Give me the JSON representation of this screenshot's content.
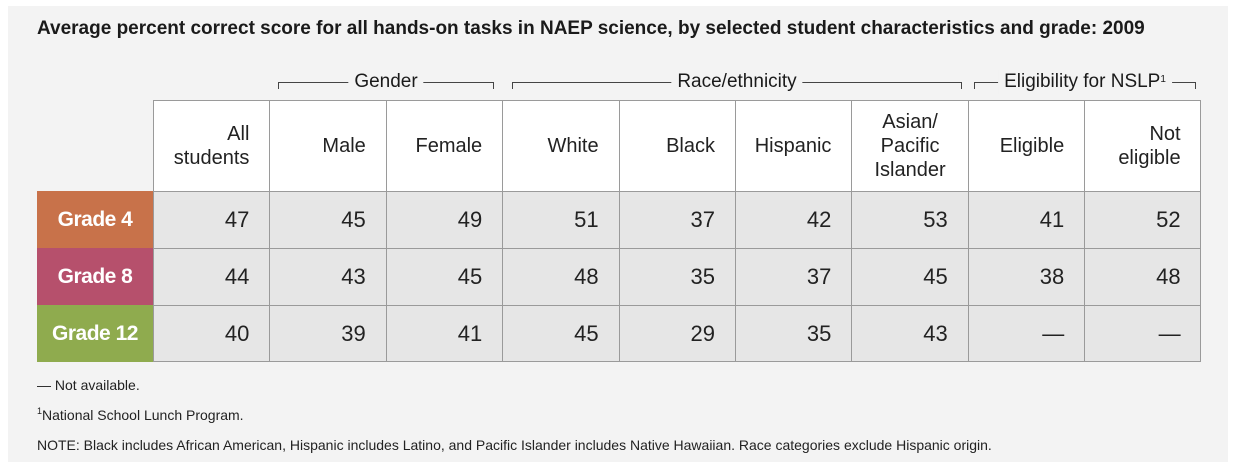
{
  "chart_data": {
    "type": "table",
    "title": "Average percent correct score for all hands-on tasks in NAEP science, by selected student characteristics and grade: 2009",
    "groups": [
      {
        "label": "Gender",
        "sup": ""
      },
      {
        "label": "Race/ethnicity",
        "sup": ""
      },
      {
        "label": "Eligibility for NSLP",
        "sup": "1"
      }
    ],
    "columns": [
      "All\nstudents",
      "Male",
      "Female",
      "White",
      "Black",
      "Hispanic",
      "Asian/\nPacific\nIslander",
      "Eligible",
      "Not\neligible"
    ],
    "rows": [
      {
        "label": "Grade 4",
        "color": "#c8724a",
        "values": [
          "47",
          "45",
          "49",
          "51",
          "37",
          "42",
          "53",
          "41",
          "52"
        ]
      },
      {
        "label": "Grade 8",
        "color": "#b6506c",
        "values": [
          "44",
          "43",
          "45",
          "48",
          "35",
          "37",
          "45",
          "38",
          "48"
        ]
      },
      {
        "label": "Grade 12",
        "color": "#8fab4e",
        "values": [
          "40",
          "39",
          "41",
          "45",
          "29",
          "35",
          "43",
          "—",
          "—"
        ]
      }
    ],
    "notes": [
      {
        "sup": "",
        "text": "— Not available."
      },
      {
        "sup": "1",
        "text": "National School Lunch Program."
      },
      {
        "sup": "",
        "text": "NOTE: Black includes African American, Hispanic includes Latino, and Pacific Islander includes Native Hawaiian. Race categories exclude Hispanic origin."
      }
    ]
  }
}
